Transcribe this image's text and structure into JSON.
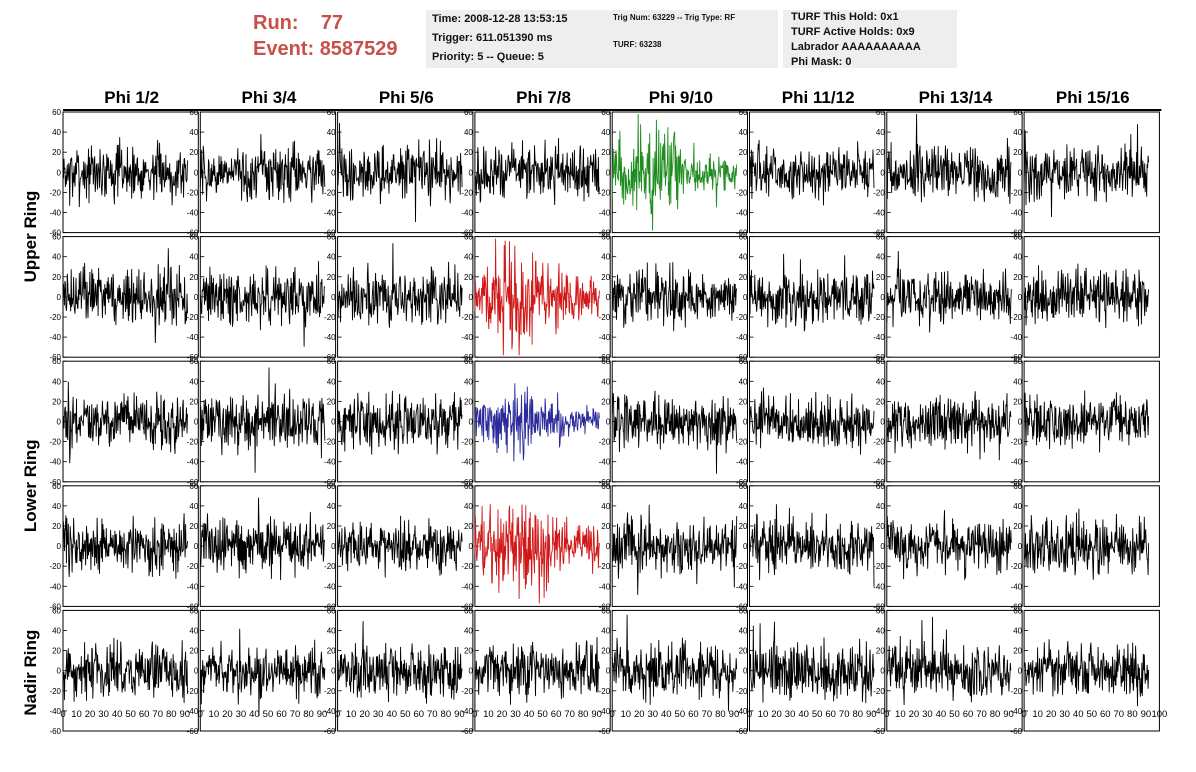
{
  "header": {
    "run_label": "Run:",
    "run_value": "77",
    "event_label": "Event:",
    "event_value": "8587529",
    "time_line": "Time: 2008-12-28 13:53:15",
    "trigger_line": "Trigger: 611.051390 ms",
    "priority_line": "Priority: 5 -- Queue: 5",
    "trig_line": "Trig Num: 63229 -- Trig Type: RF",
    "turf_num_line": "TURF: 63238",
    "turf_hold_line": "TURF This Hold: 0x1",
    "turf_active_line": "TURF Active Holds: 0x9",
    "labrador_line": "Labrador AAAAAAAAAA",
    "phi_mask_line": "Phi Mask: 0"
  },
  "chart_data": {
    "type": "line",
    "columns": [
      "Phi 1/2",
      "Phi 3/4",
      "Phi 5/6",
      "Phi 7/8",
      "Phi 9/10",
      "Phi 11/12",
      "Phi 13/14",
      "Phi 15/16"
    ],
    "row_groups": [
      "Upper Ring",
      "Lower Ring",
      "Nadir Ring"
    ],
    "panel_rows": 5,
    "ylim": [
      -60,
      60
    ],
    "yticks": [
      -60,
      -40,
      -20,
      0,
      20,
      40,
      60
    ],
    "xlim": [
      0,
      100
    ],
    "xticks": [
      0,
      10,
      20,
      30,
      40,
      50,
      60,
      70,
      80,
      90,
      100
    ],
    "samples_per_trace": 260,
    "trace_x_end": 92,
    "default_color": "#000000",
    "baseline_amplitude": 13,
    "highlighted": [
      {
        "row": 0,
        "col": 4,
        "color": "#1e8c1e",
        "amplitude": 17
      },
      {
        "row": 1,
        "col": 3,
        "color": "#d01818",
        "amplitude": 17
      },
      {
        "row": 2,
        "col": 3,
        "color": "#2a2a9a",
        "amplitude": 12
      },
      {
        "row": 3,
        "col": 3,
        "color": "#d01818",
        "amplitude": 18
      }
    ]
  }
}
